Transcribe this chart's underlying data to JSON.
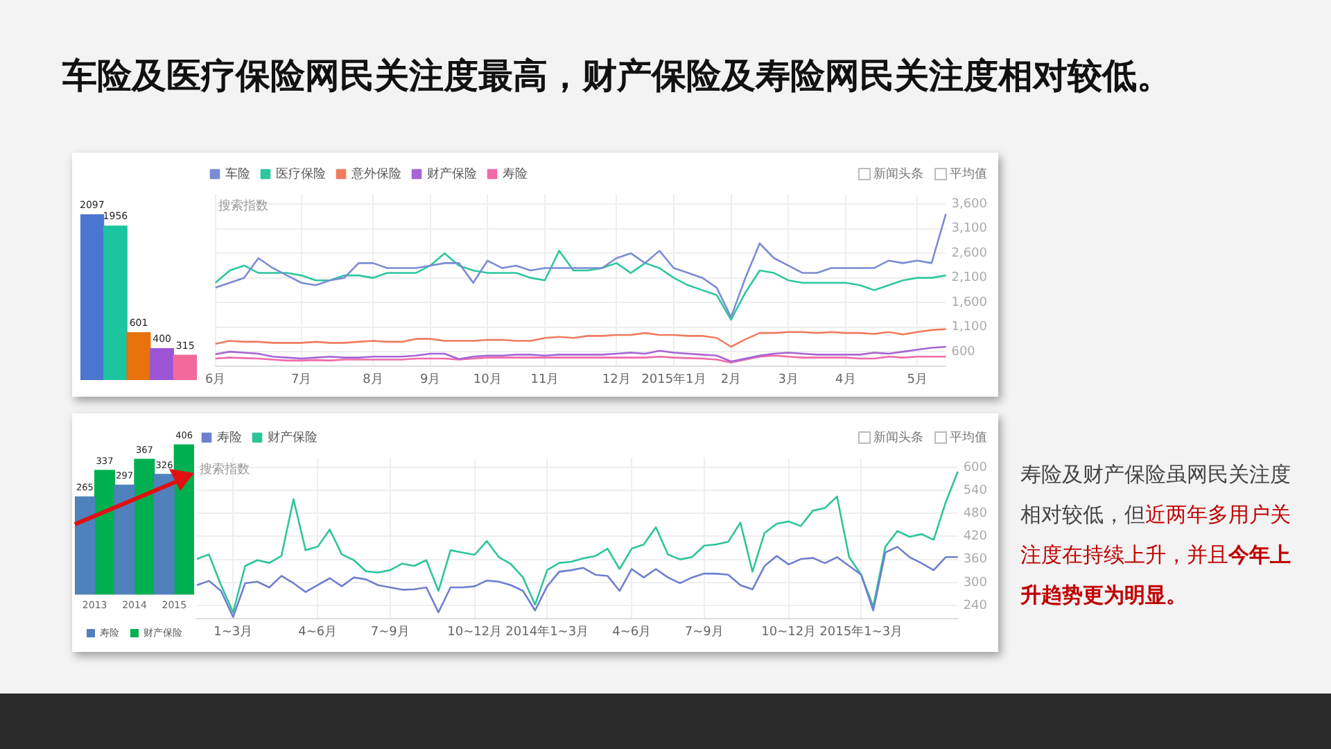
{
  "chart_data": [
    {
      "type": "bar",
      "title": "车险及医疗保险网民关注度最高，财产保险及寿险网民关注度相对较低。",
      "categories": [
        null,
        null,
        null,
        null,
        null
      ],
      "values": [
        2097,
        1956,
        601,
        400,
        315
      ],
      "colors": [
        "#4a76d0",
        "#1cc4a0",
        "#e8720c",
        "#9b55d4",
        "#f2699c"
      ],
      "data_labels": true,
      "tick_labels": false
    },
    {
      "type": "line",
      "ylabel": "搜索指数",
      "annotations": [
        "新闻头条",
        "平均值"
      ],
      "legend": "top left",
      "grid": true,
      "marker": "none",
      "line_style": "solid",
      "categories": [
        "6月",
        null,
        null,
        null,
        null,
        null,
        "7月",
        null,
        null,
        null,
        null,
        "8月",
        null,
        null,
        null,
        "9月",
        null,
        null,
        null,
        "10月",
        null,
        null,
        null,
        "11月",
        null,
        null,
        null,
        null,
        "12月",
        null,
        null,
        null,
        "2015年1月",
        null,
        null,
        null,
        "2月",
        null,
        null,
        null,
        "3月",
        null,
        null,
        null,
        "4月",
        null,
        null,
        null,
        null,
        "5月",
        null,
        null
      ],
      "ylim": [
        300,
        3800
      ],
      "yticks": [
        600,
        {
          "value": 1100,
          "label": "1,100"
        },
        {
          "value": 1600,
          "label": "1,600"
        },
        {
          "value": 2100,
          "label": "2,100"
        },
        {
          "value": 2600,
          "label": "2,600"
        },
        {
          "value": 3100,
          "label": "3,100"
        },
        {
          "value": 3600,
          "label": "3,600"
        }
      ],
      "series": [
        {
          "name": "车险",
          "color": "#7b8cd4",
          "values": [
            1900,
            2000,
            2100,
            2500,
            2300,
            2150,
            2000,
            1950,
            2050,
            2100,
            2400,
            2400,
            2300,
            2300,
            2300,
            2350,
            2400,
            2400,
            2000,
            2450,
            2300,
            2350,
            2250,
            2300,
            2300,
            2300,
            2300,
            2300,
            2500,
            2600,
            2400,
            2650,
            2300,
            2200,
            2100,
            1900,
            1300,
            2100,
            2800,
            2500,
            2350,
            2200,
            2200,
            2300,
            2300,
            2300,
            2300,
            2450,
            2400,
            2450,
            2400,
            3400
          ]
        },
        {
          "name": "医疗保险",
          "color": "#2ec79f",
          "values": [
            2000,
            2250,
            2350,
            2200,
            2200,
            2200,
            2150,
            2050,
            2050,
            2150,
            2150,
            2100,
            2200,
            2200,
            2200,
            2350,
            2600,
            2350,
            2250,
            2200,
            2200,
            2200,
            2100,
            2050,
            2650,
            2250,
            2250,
            2300,
            2400,
            2200,
            2400,
            2300,
            2100,
            1950,
            1850,
            1750,
            1250,
            1800,
            2250,
            2200,
            2050,
            2000,
            2000,
            2000,
            2000,
            1950,
            1850,
            1950,
            2050,
            2100,
            2100,
            2150
          ]
        },
        {
          "name": "意外保险",
          "color": "#f07b5e",
          "values": [
            760,
            820,
            800,
            800,
            780,
            780,
            780,
            800,
            780,
            780,
            800,
            820,
            800,
            800,
            860,
            860,
            820,
            820,
            820,
            840,
            840,
            820,
            820,
            880,
            900,
            880,
            920,
            920,
            940,
            940,
            980,
            940,
            940,
            920,
            920,
            880,
            700,
            850,
            980,
            980,
            1000,
            1000,
            980,
            1000,
            980,
            980,
            960,
            1000,
            950,
            1000,
            1040,
            1060
          ]
        },
        {
          "name": "财产保险",
          "color": "#a665d6",
          "values": [
            550,
            600,
            580,
            560,
            500,
            480,
            460,
            480,
            500,
            480,
            480,
            500,
            500,
            500,
            520,
            560,
            560,
            450,
            500,
            520,
            520,
            540,
            540,
            520,
            540,
            540,
            540,
            540,
            560,
            580,
            560,
            620,
            580,
            560,
            540,
            520,
            400,
            460,
            520,
            560,
            580,
            560,
            540,
            540,
            540,
            540,
            580,
            560,
            600,
            640,
            680,
            700
          ]
        },
        {
          "name": "寿险",
          "color": "#f06aa8",
          "values": [
            460,
            480,
            470,
            460,
            440,
            420,
            420,
            430,
            420,
            440,
            440,
            440,
            440,
            440,
            460,
            460,
            460,
            440,
            460,
            480,
            480,
            480,
            480,
            480,
            480,
            480,
            480,
            480,
            480,
            480,
            480,
            500,
            480,
            470,
            460,
            440,
            380,
            440,
            500,
            520,
            500,
            480,
            480,
            480,
            480,
            460,
            460,
            500,
            480,
            500,
            500,
            500
          ]
        }
      ]
    },
    {
      "type": "bar",
      "categories": [
        "2013",
        "2014",
        "2015"
      ],
      "legend": "bottom",
      "data_labels": true,
      "tick_labels": "x",
      "series": [
        {
          "name": "寿险",
          "color": "#4f81bd",
          "values": [
            265,
            297,
            326
          ]
        },
        {
          "name": "财产保险",
          "color": "#00b050",
          "values": [
            337,
            367,
            406
          ]
        }
      ]
    },
    {
      "type": "line",
      "ylabel": "搜索指数",
      "annotations": [
        "新闻头条",
        "平均值"
      ],
      "legend": "top left",
      "grid": true,
      "marker": "none",
      "line_style": "solid",
      "categories": [
        null,
        null,
        null,
        "1~3月",
        null,
        null,
        null,
        null,
        null,
        null,
        "4~6月",
        null,
        null,
        null,
        null,
        null,
        "7~9月",
        null,
        null,
        null,
        null,
        null,
        null,
        "10~12月",
        null,
        null,
        null,
        null,
        null,
        "2014年1~3月",
        null,
        null,
        null,
        null,
        null,
        null,
        "4~6月",
        null,
        null,
        null,
        null,
        null,
        "7~9月",
        null,
        null,
        null,
        null,
        null,
        null,
        "10~12月",
        null,
        null,
        null,
        null,
        null,
        "2015年1~3月",
        null,
        null,
        null,
        null,
        null,
        null,
        null,
        null
      ],
      "ylim": [
        205,
        625
      ],
      "yticks": [
        240,
        300,
        360,
        420,
        480,
        540,
        600
      ],
      "series": [
        {
          "name": "寿险",
          "color": "#6f7fcf",
          "values": [
            293,
            304,
            278,
            210,
            298,
            302,
            287,
            317,
            298,
            275,
            293,
            311,
            290,
            313,
            308,
            293,
            287,
            281,
            282,
            287,
            222,
            287,
            287,
            290,
            305,
            302,
            293,
            278,
            227,
            290,
            328,
            332,
            338,
            320,
            317,
            278,
            335,
            313,
            335,
            313,
            298,
            313,
            323,
            323,
            320,
            293,
            282,
            343,
            369,
            347,
            361,
            364,
            350,
            366,
            343,
            320,
            227,
            378,
            393,
            366,
            350,
            332,
            366,
            366
          ]
        },
        {
          "name": "财产保险",
          "color": "#2ec49a",
          "values": [
            361,
            373,
            293,
            222,
            343,
            358,
            351,
            369,
            517,
            384,
            393,
            438,
            373,
            358,
            329,
            326,
            332,
            349,
            343,
            358,
            278,
            384,
            378,
            372,
            408,
            366,
            348,
            313,
            242,
            332,
            351,
            354,
            363,
            369,
            388,
            335,
            388,
            399,
            444,
            373,
            360,
            366,
            396,
            399,
            406,
            456,
            328,
            429,
            453,
            459,
            447,
            487,
            494,
            524,
            366,
            320,
            237,
            393,
            434,
            419,
            426,
            411,
            509,
            589
          ]
        }
      ]
    },
    {
      "type": "other",
      "annotations": [
        "寿险及财产保险虽网民关注度相对较低，但",
        "近两年多用户关注度在持续上升，并且",
        "今年上升趋势更为明显。"
      ]
    }
  ]
}
